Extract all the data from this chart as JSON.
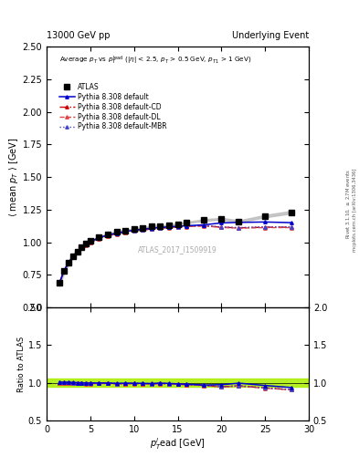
{
  "title_left": "13000 GeV pp",
  "title_right": "Underlying Event",
  "watermark": "ATLAS_2017_I1509919",
  "ylabel_main": "$\\langle$ mean $p_{T}$ $\\rangle$ [GeV]",
  "ylabel_ratio": "Ratio to ATLAS",
  "xlabel": "$p_{T}^{l}\\!$ead [GeV]",
  "ylim_main": [
    0.5,
    2.5
  ],
  "ylim_ratio": [
    0.5,
    2.0
  ],
  "xlim": [
    0,
    30
  ],
  "atlas_x": [
    1.5,
    2.0,
    2.5,
    3.0,
    3.5,
    4.0,
    4.5,
    5.0,
    6.0,
    7.0,
    8.0,
    9.0,
    10.0,
    11.0,
    12.0,
    13.0,
    14.0,
    15.0,
    16.0,
    18.0,
    20.0,
    22.0,
    25.0,
    28.0
  ],
  "atlas_y": [
    0.69,
    0.78,
    0.84,
    0.89,
    0.93,
    0.96,
    0.99,
    1.01,
    1.04,
    1.06,
    1.08,
    1.09,
    1.1,
    1.11,
    1.12,
    1.12,
    1.13,
    1.14,
    1.15,
    1.17,
    1.18,
    1.16,
    1.2,
    1.23
  ],
  "atlas_yerr": [
    0.02,
    0.015,
    0.012,
    0.01,
    0.009,
    0.008,
    0.007,
    0.006,
    0.006,
    0.005,
    0.005,
    0.005,
    0.005,
    0.005,
    0.005,
    0.005,
    0.005,
    0.005,
    0.006,
    0.006,
    0.007,
    0.008,
    0.009,
    0.01
  ],
  "pythia_default_x": [
    1.5,
    2.0,
    2.5,
    3.0,
    3.5,
    4.0,
    4.5,
    5.0,
    6.0,
    7.0,
    8.0,
    9.0,
    10.0,
    11.0,
    12.0,
    13.0,
    14.0,
    15.0,
    16.0,
    18.0,
    20.0,
    22.0,
    25.0,
    28.0
  ],
  "pythia_default_y": [
    0.695,
    0.785,
    0.845,
    0.893,
    0.93,
    0.96,
    0.985,
    1.005,
    1.035,
    1.055,
    1.07,
    1.082,
    1.092,
    1.1,
    1.107,
    1.113,
    1.118,
    1.122,
    1.126,
    1.133,
    1.148,
    1.152,
    1.155,
    1.15
  ],
  "pythia_cd_x": [
    1.5,
    2.0,
    2.5,
    3.0,
    3.5,
    4.0,
    4.5,
    5.0,
    6.0,
    7.0,
    8.0,
    9.0,
    10.0,
    11.0,
    12.0,
    13.0,
    14.0,
    15.0,
    16.0,
    18.0,
    20.0,
    22.0,
    25.0,
    28.0
  ],
  "pythia_cd_y": [
    0.69,
    0.78,
    0.84,
    0.888,
    0.925,
    0.955,
    0.98,
    1.0,
    1.03,
    1.05,
    1.065,
    1.077,
    1.087,
    1.095,
    1.102,
    1.108,
    1.113,
    1.117,
    1.121,
    1.127,
    1.115,
    1.11,
    1.115,
    1.115
  ],
  "pythia_dl_x": [
    1.5,
    2.0,
    2.5,
    3.0,
    3.5,
    4.0,
    4.5,
    5.0,
    6.0,
    7.0,
    8.0,
    9.0,
    10.0,
    11.0,
    12.0,
    13.0,
    14.0,
    15.0,
    16.0,
    18.0,
    20.0,
    22.0,
    25.0,
    28.0
  ],
  "pythia_dl_y": [
    0.688,
    0.778,
    0.838,
    0.886,
    0.923,
    0.953,
    0.978,
    0.998,
    1.028,
    1.048,
    1.063,
    1.075,
    1.085,
    1.093,
    1.1,
    1.106,
    1.111,
    1.115,
    1.119,
    1.125,
    1.113,
    1.108,
    1.112,
    1.112
  ],
  "pythia_mbr_x": [
    1.5,
    2.0,
    2.5,
    3.0,
    3.5,
    4.0,
    4.5,
    5.0,
    6.0,
    7.0,
    8.0,
    9.0,
    10.0,
    11.0,
    12.0,
    13.0,
    14.0,
    15.0,
    16.0,
    18.0,
    20.0,
    22.0,
    25.0,
    28.0
  ],
  "pythia_mbr_y": [
    0.692,
    0.782,
    0.842,
    0.89,
    0.927,
    0.957,
    0.982,
    1.002,
    1.032,
    1.052,
    1.067,
    1.079,
    1.089,
    1.097,
    1.104,
    1.11,
    1.115,
    1.119,
    1.123,
    1.129,
    1.117,
    1.112,
    1.118,
    1.118
  ],
  "color_default": "#0000cc",
  "color_cd": "#cc0000",
  "color_dl": "#dd4444",
  "color_mbr": "#4444cc",
  "color_atlas": "#000000",
  "bg_color": "#ffffff",
  "ratio_band_color": "#aaee00"
}
